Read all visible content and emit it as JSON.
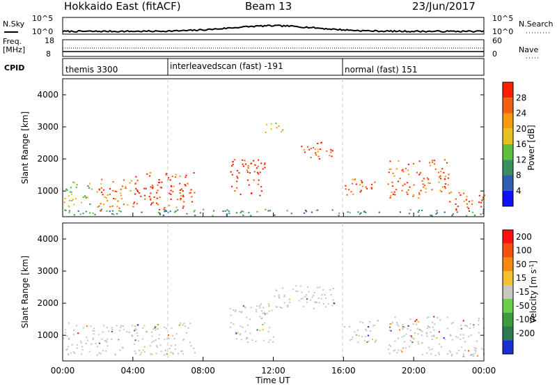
{
  "header": {
    "title": "Hokkaido East (fitACF)",
    "beam": "Beam 13",
    "date": "23/Jun/2017"
  },
  "noise_panel": {
    "left_label": "N.Sky",
    "left_ticks": [
      "10^5",
      "10^0"
    ],
    "right_ticks": [
      "10^5",
      "10^0"
    ],
    "right_label": "N.Search"
  },
  "freq_panel": {
    "left_label_1": "Freq.",
    "left_label_2": "[MHz]",
    "left_ticks": [
      "18",
      "8"
    ],
    "right_ticks": [
      "60",
      "0"
    ],
    "right_label": "Nave"
  },
  "cpid_panel": {
    "label": "CPID",
    "segments": [
      {
        "text": "themis 3300",
        "start_hour": 0
      },
      {
        "text": "interleavedscan (fast) -191",
        "start_hour": 6
      },
      {
        "text": "normal (fast) 151",
        "start_hour": 16
      }
    ]
  },
  "chart_data": [
    {
      "type": "heatmap",
      "name": "power",
      "ylabel": "Slant Range [km]",
      "xlabel": "",
      "xlim": [
        0,
        24
      ],
      "ylim": [
        200,
        4500
      ],
      "yticks": [
        1000,
        2000,
        3000,
        4000
      ],
      "xticks": [
        "00:00",
        "04:00",
        "08:00",
        "12:00",
        "16:00",
        "20:00",
        "00:00"
      ],
      "colorbar_label": "Power [dB]",
      "colorbar_ticks": [
        "4",
        "8",
        "12",
        "16",
        "20",
        "24",
        "28"
      ],
      "colorbar_colors": [
        "#1010ff",
        "#2d5fb0",
        "#3a8f5f",
        "#5fbf3f",
        "#e8c020",
        "#f59a10",
        "#f06010",
        "#ff2000"
      ],
      "scatter_regions": [
        {
          "t0": 0.0,
          "t1": 2.0,
          "r0": 500,
          "r1": 1300,
          "level": 0.5
        },
        {
          "t0": 2.0,
          "t1": 4.0,
          "r0": 400,
          "r1": 1400,
          "level": 0.75
        },
        {
          "t0": 4.0,
          "t1": 7.5,
          "r0": 400,
          "r1": 1600,
          "level": 0.9
        },
        {
          "t0": 9.5,
          "t1": 11.5,
          "r0": 800,
          "r1": 2000,
          "level": 0.95
        },
        {
          "t0": 11.5,
          "t1": 12.5,
          "r0": 2800,
          "r1": 3200,
          "level": 0.55
        },
        {
          "t0": 13.5,
          "t1": 15.5,
          "r0": 2000,
          "r1": 2600,
          "level": 0.85
        },
        {
          "t0": 16.0,
          "t1": 17.8,
          "r0": 900,
          "r1": 1500,
          "level": 0.8
        },
        {
          "t0": 18.5,
          "t1": 22.0,
          "r0": 800,
          "r1": 2000,
          "level": 0.85
        },
        {
          "t0": 22.0,
          "t1": 24.0,
          "r0": 400,
          "r1": 1000,
          "level": 0.9
        },
        {
          "t0": 0.0,
          "t1": 24.0,
          "r0": 250,
          "r1": 450,
          "level": 0.3
        }
      ]
    },
    {
      "type": "heatmap",
      "name": "velocity",
      "ylabel": "Slant Range [km]",
      "xlabel": "Time UT",
      "xlim": [
        0,
        24
      ],
      "ylim": [
        200,
        4500
      ],
      "yticks": [
        1000,
        2000,
        3000,
        4000
      ],
      "xticks": [
        "00:00",
        "04:00",
        "08:00",
        "12:00",
        "16:00",
        "20:00",
        "00:00"
      ],
      "colorbar_label": "Velocity [m s^-1]",
      "colorbar_ticks": [
        "200",
        "100",
        "50",
        "15",
        "-15",
        "-50",
        "-100",
        "-200"
      ],
      "colorbar_colors": [
        "#1a2fcf",
        "#2d7a4f",
        "#3c9b3c",
        "#6ad04a",
        "#c8c8c0",
        "#f2c030",
        "#f58a10",
        "#f55010",
        "#ff1010"
      ],
      "scatter_regions": [
        {
          "t0": 0.0,
          "t1": 7.5,
          "r0": 400,
          "r1": 1400,
          "level": 0.45
        },
        {
          "t0": 9.5,
          "t1": 12.0,
          "r0": 800,
          "r1": 2000,
          "level": 0.45
        },
        {
          "t0": 12.0,
          "t1": 15.5,
          "r0": 1800,
          "r1": 2600,
          "level": 0.45
        },
        {
          "t0": 16.0,
          "t1": 18.0,
          "r0": 800,
          "r1": 1500,
          "level": 0.35
        },
        {
          "t0": 18.5,
          "t1": 24.0,
          "r0": 400,
          "r1": 1600,
          "level": 0.45
        },
        {
          "t0": 20.0,
          "t1": 24.0,
          "r0": 350,
          "r1": 500,
          "level": 0.75
        }
      ]
    }
  ]
}
